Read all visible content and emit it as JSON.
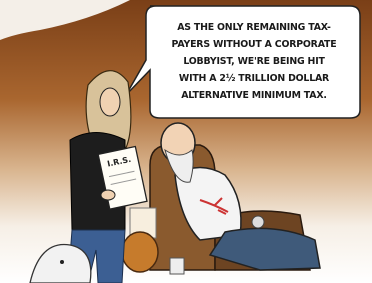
{
  "speech_bubble": {
    "lines": [
      "AS THE ONLY REMAINING TAX-",
      "PAYERS WITHOUT A CORPORATE",
      "LOBBYIST, WE'RE BEING HIT",
      "WITH A 2½ TRILLION DOLLAR",
      "ALTERNATIVE MINIMUM TAX."
    ]
  },
  "clipboard": {
    "label": "I.R.S."
  }
}
